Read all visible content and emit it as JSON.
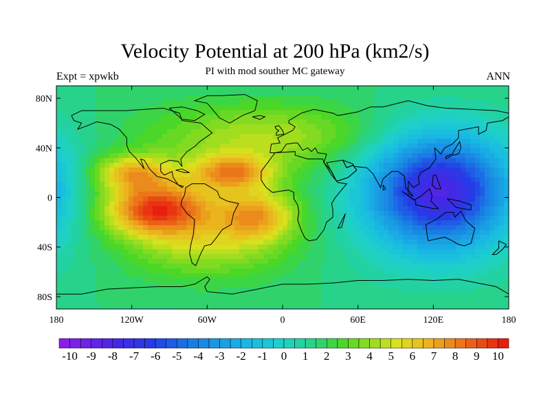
{
  "header": {
    "title": "Velocity Potential at 200 hPa (km2/s)",
    "subtitle": "PI with mod souther MC gateway",
    "left_string": "Expt = xpwkb",
    "right_string": "ANN"
  },
  "map": {
    "projection": "cylindrical-equidistant",
    "lon_range": [
      -180,
      180
    ],
    "lat_range": [
      -90,
      90
    ],
    "x_ticks": [
      {
        "value": -180,
        "label": "180"
      },
      {
        "value": -120,
        "label": "120W"
      },
      {
        "value": -60,
        "label": "60W"
      },
      {
        "value": 0,
        "label": "0"
      },
      {
        "value": 60,
        "label": "60E"
      },
      {
        "value": 120,
        "label": "120E"
      },
      {
        "value": 180,
        "label": "180"
      }
    ],
    "y_ticks": [
      {
        "value": 80,
        "label": "80N"
      },
      {
        "value": 40,
        "label": "40N"
      },
      {
        "value": 0,
        "label": "0"
      },
      {
        "value": -40,
        "label": "40S"
      },
      {
        "value": -80,
        "label": "80S"
      }
    ],
    "field_centers": [
      {
        "lon": -100,
        "lat": -10,
        "value": 9.3,
        "note": "maximum, eastern tropical Pacific"
      },
      {
        "lon": -120,
        "lat": 20,
        "value": 6.0
      },
      {
        "lon": -40,
        "lat": 20,
        "value": 6.5
      },
      {
        "lon": -20,
        "lat": -15,
        "value": 6.2
      },
      {
        "lon": 125,
        "lat": 5,
        "value": -9.5,
        "note": "minimum, Maritime Continent"
      },
      {
        "lon": -60,
        "lat": -40,
        "value": 3.0
      },
      {
        "lon": 0,
        "lat": 50,
        "value": 3.5
      }
    ]
  },
  "colorbar": {
    "labels": [
      "-10",
      "-9",
      "-8",
      "-7",
      "-6",
      "-5",
      "-4",
      "-3",
      "-2",
      "-1",
      "0",
      "1",
      "2",
      "3",
      "4",
      "5",
      "6",
      "7",
      "8",
      "9",
      "10"
    ],
    "min": -10.5,
    "max": 10.5,
    "interval": 0.5,
    "palette_start": "#8a1ee8",
    "palette_mid": "#20c8d8",
    "palette_end": "#e81e0e"
  }
}
